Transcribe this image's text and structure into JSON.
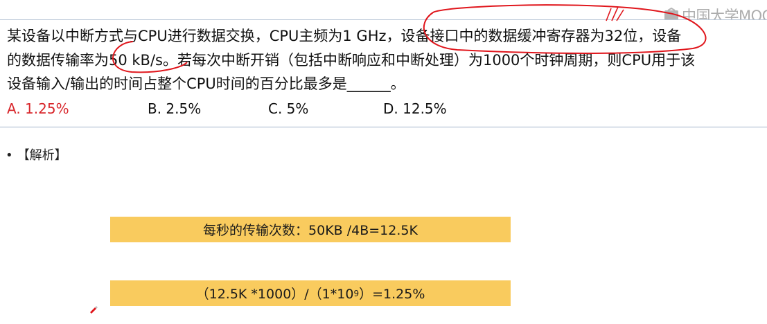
{
  "logo": {
    "text": "中国大学MOOC",
    "icon": "mooc-logo-icon"
  },
  "question": {
    "line1": "某设备以中断方式与CPU进行数据交换，CPU主频为1 GHz，设备接口中的数据缓冲寄存器为32位，设备",
    "line2": "的数据传输率为50 kB/s。若每次中断开销（包括中断响应和中断处理）为1000个时钟周期，则CPU用于该",
    "line3": "设备输入/输出的时间占整个CPU时间的百分比最多是______。",
    "options": [
      {
        "label": "A. 1.25%",
        "correct": true
      },
      {
        "label": "B. 2.5%",
        "correct": false
      },
      {
        "label": "C. 5%",
        "correct": false
      },
      {
        "label": "D. 12.5%",
        "correct": false
      }
    ]
  },
  "analysis": {
    "bullet": "•",
    "title": "【解析】"
  },
  "formulas": {
    "f1": "每秒的传输次数：50KB /4B=12.5K",
    "f2_pre": "（12.5K *1000）/（1*10",
    "f2_sup": "9",
    "f2_post": "）=1.25%"
  },
  "colors": {
    "accent_red": "#d8262b",
    "highlight": "#f9cb5e",
    "border": "#9fb2c8"
  }
}
